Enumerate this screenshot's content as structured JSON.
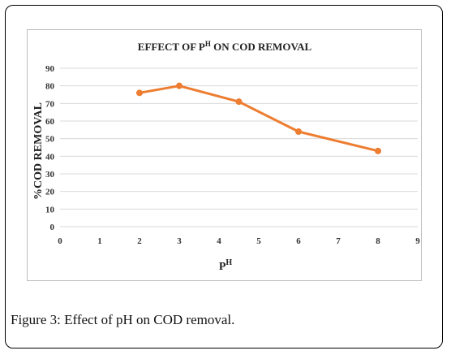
{
  "chart_data": {
    "type": "line",
    "title_main": "EFFECT OF P",
    "title_sup": "H",
    "title_rest": " ON COD REMOVAL",
    "xlabel_main": "P",
    "xlabel_sup": "H",
    "ylabel": "%COD REMOVAL",
    "x_ticks": [
      0,
      1,
      2,
      3,
      4,
      5,
      6,
      7,
      8,
      9
    ],
    "y_ticks": [
      0,
      10,
      20,
      30,
      40,
      50,
      60,
      70,
      80,
      90
    ],
    "xlim": [
      0,
      9
    ],
    "ylim": [
      0,
      90
    ],
    "grid": "horizontal",
    "series": [
      {
        "color": "#ED7D31",
        "x": [
          2,
          3,
          4.5,
          6,
          8
        ],
        "y": [
          76,
          80,
          71,
          54,
          43
        ]
      }
    ]
  },
  "caption": {
    "label": "Figure 3:",
    "text": " Effect of pH on COD removal."
  }
}
